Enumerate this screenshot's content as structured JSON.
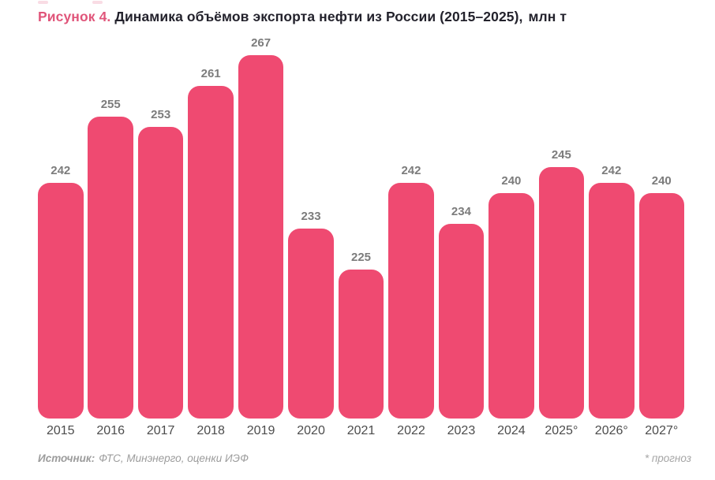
{
  "title": {
    "prefix": "Рисунок 4.",
    "text": "Динамика объёмов экспорта нефти из России (2015–2025),",
    "units": "млн т"
  },
  "colors": {
    "bar": "#EF4A71",
    "title_accent": "#E0557A",
    "title_text": "#23222C",
    "value_label": "#7C7C7C",
    "axis_label": "#4C4C4C",
    "footer_text": "#9C9C9C"
  },
  "chart_data": {
    "type": "bar",
    "categories": [
      "2015",
      "2016",
      "2017",
      "2018",
      "2019",
      "2020",
      "2021",
      "2022",
      "2023",
      "2024",
      "2025°",
      "2026°",
      "2027°"
    ],
    "values": [
      242,
      255,
      253,
      261,
      267,
      233,
      225,
      242,
      234,
      240,
      245,
      242,
      240
    ],
    "title": "Рисунок 4. Динамика объёмов экспорта нефти из России (2015–2025), млн т",
    "xlabel": "",
    "ylabel": "млн т",
    "ylim": [
      195.8,
      270
    ],
    "grid": false,
    "legend": false,
    "value_labels": true,
    "bar_color": "#EF4A71",
    "forecast_marker": "°",
    "forecast_categories": [
      "2025°",
      "2026°",
      "2027°"
    ]
  },
  "footer": {
    "source_label": "Источник:",
    "source_text": "ФТС, Минэнерго, оценки ИЭФ",
    "note": "* прогноз"
  }
}
